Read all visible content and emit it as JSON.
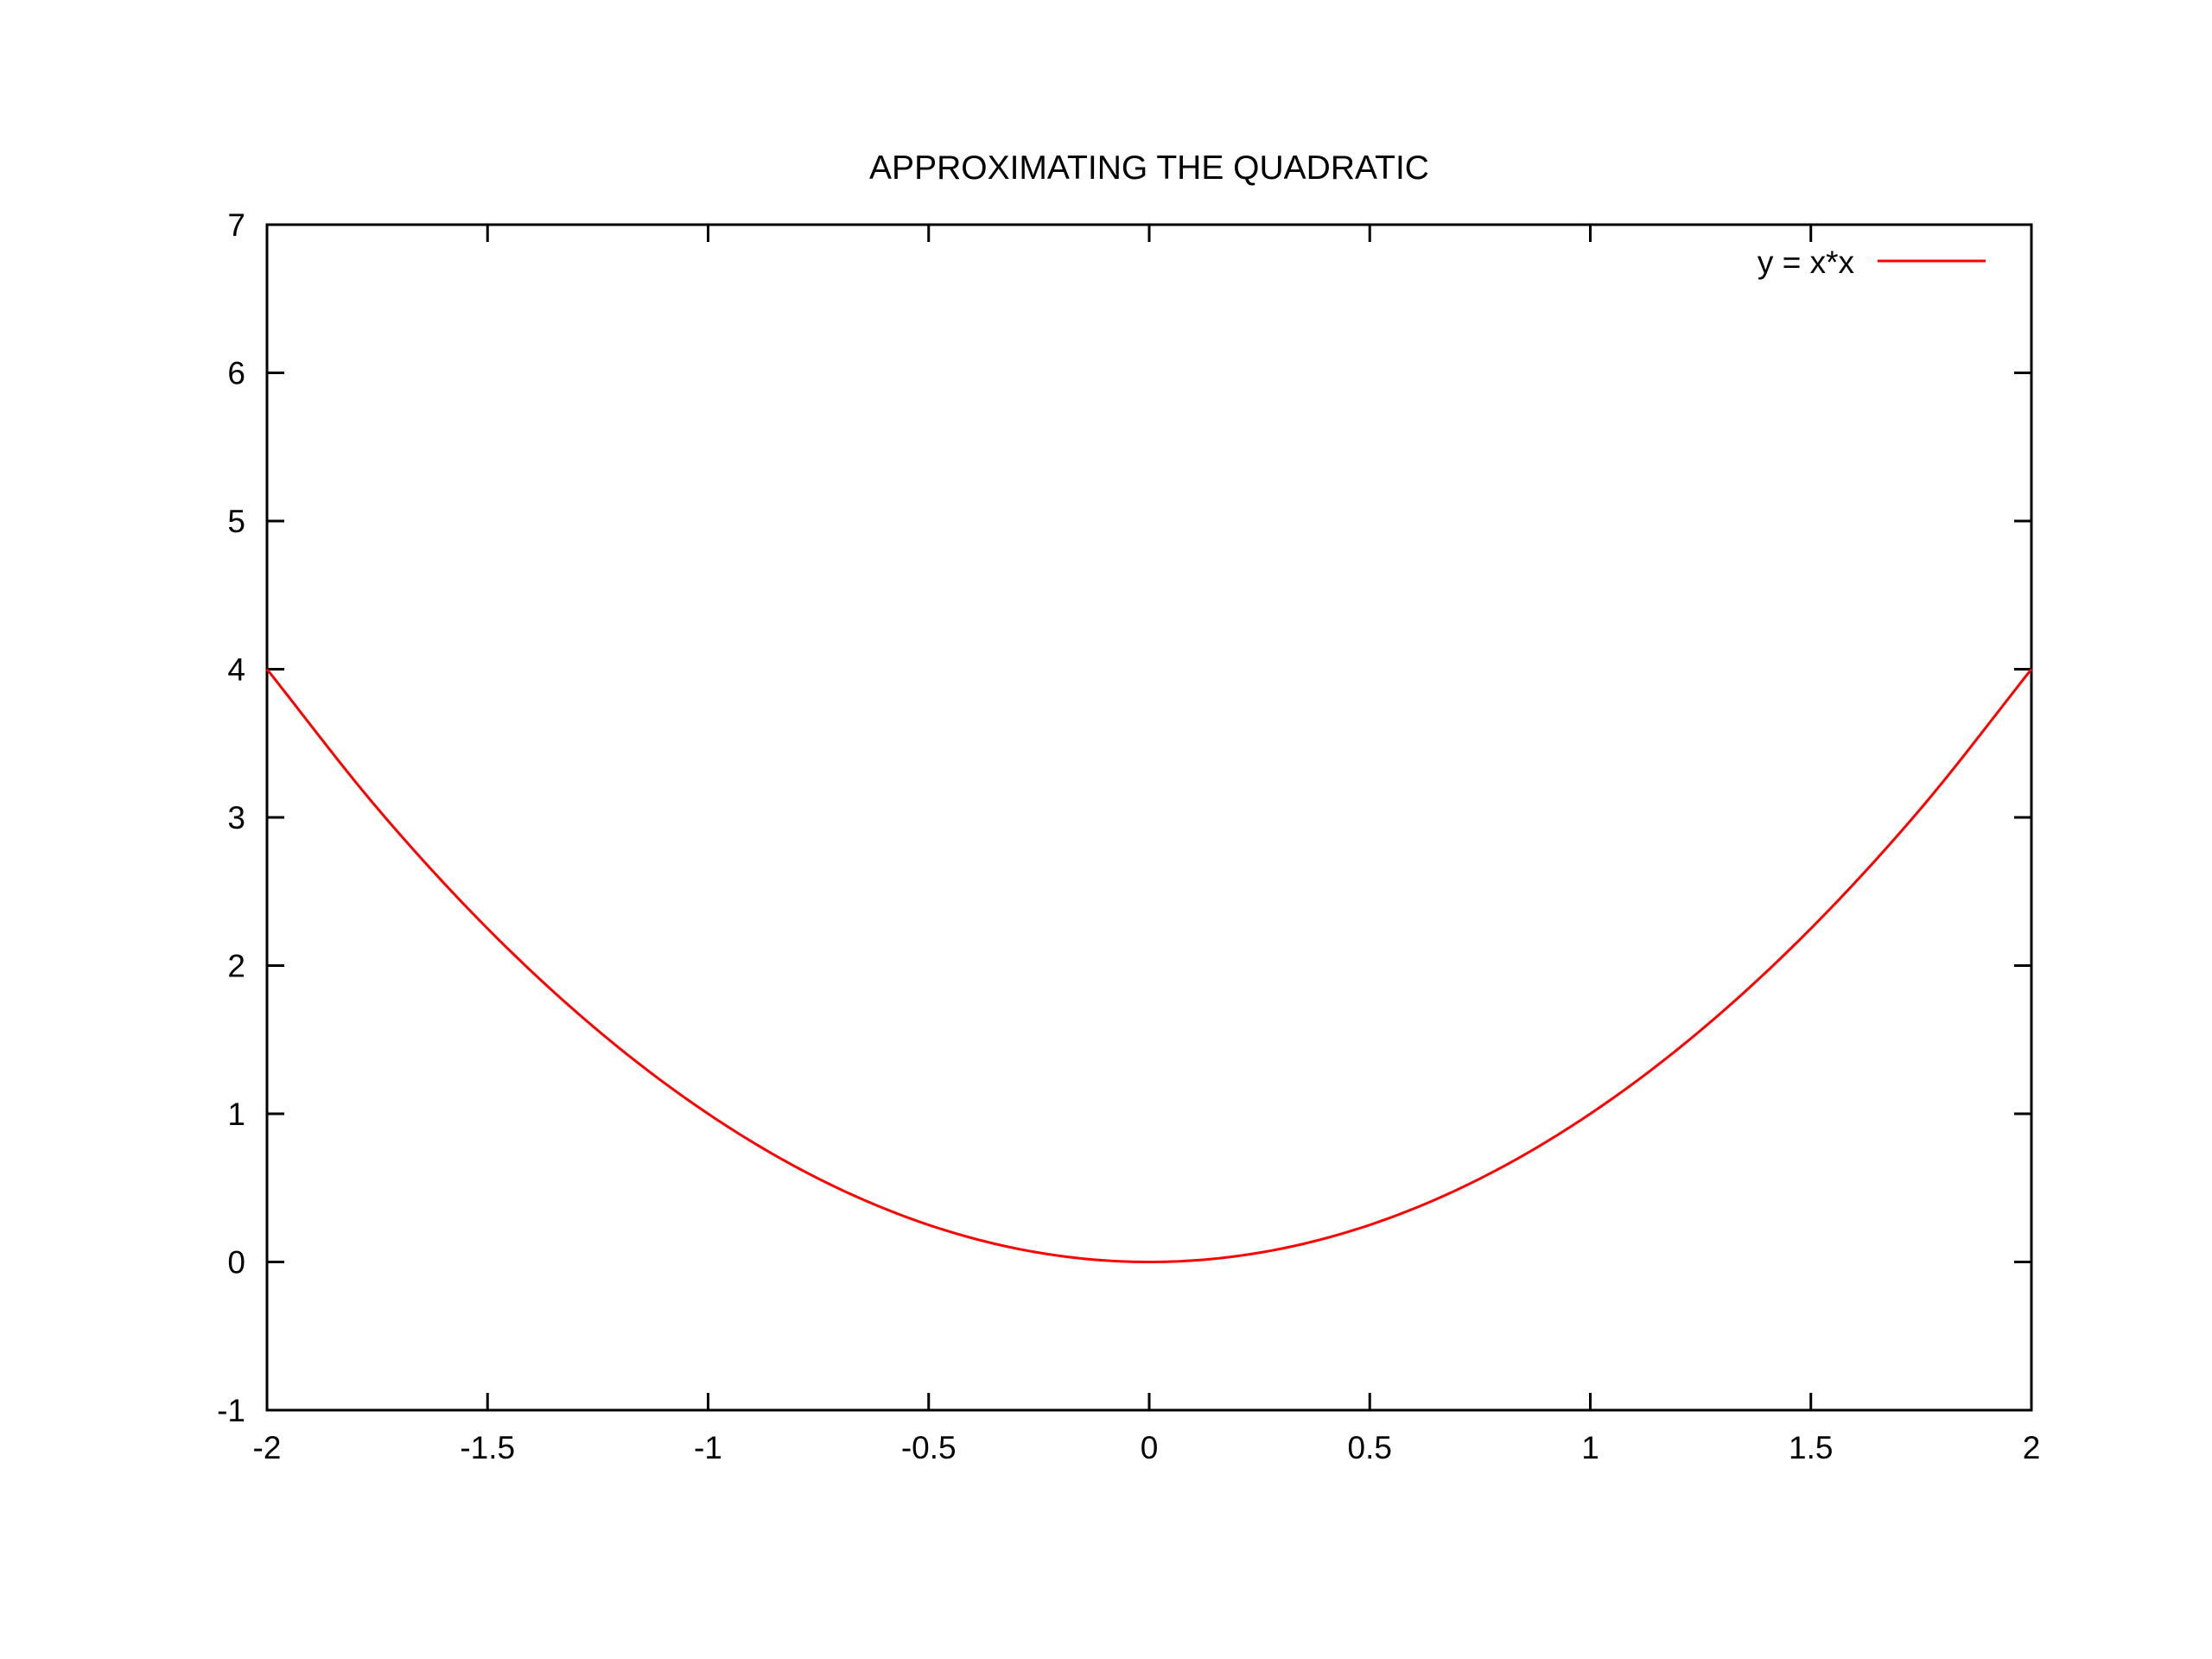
{
  "chart_data": {
    "type": "line",
    "title": "APPROXIMATING THE QUADRATIC",
    "xlabel": "",
    "ylabel": "",
    "xlim": [
      -2,
      2
    ],
    "ylim": [
      -1,
      7
    ],
    "xticks": [
      -2,
      -1.5,
      -1,
      -0.5,
      0,
      0.5,
      1,
      1.5,
      2
    ],
    "xtick_labels": [
      "-2",
      "-1.5",
      "-1",
      "-0.5",
      "0",
      "0.5",
      "1",
      "1.5",
      "2"
    ],
    "yticks": [
      -1,
      0,
      1,
      2,
      3,
      4,
      5,
      6,
      7
    ],
    "ytick_labels": [
      "-1",
      "0",
      "1",
      "2",
      "3",
      "4",
      "5",
      "6",
      "7"
    ],
    "grid": false,
    "legend_position": "top-right",
    "series": [
      {
        "name": "y = x*x",
        "color": "#ff0000",
        "x": [
          -2,
          -1.75,
          -1.5,
          -1.25,
          -1,
          -0.75,
          -0.5,
          -0.25,
          0,
          0.25,
          0.5,
          0.75,
          1,
          1.25,
          1.5,
          1.75,
          2
        ],
        "y": [
          4,
          3.0625,
          2.25,
          1.5625,
          1,
          0.5625,
          0.25,
          0.0625,
          0,
          0.0625,
          0.25,
          0.5625,
          1,
          1.5625,
          2.25,
          3.0625,
          4
        ]
      }
    ]
  }
}
